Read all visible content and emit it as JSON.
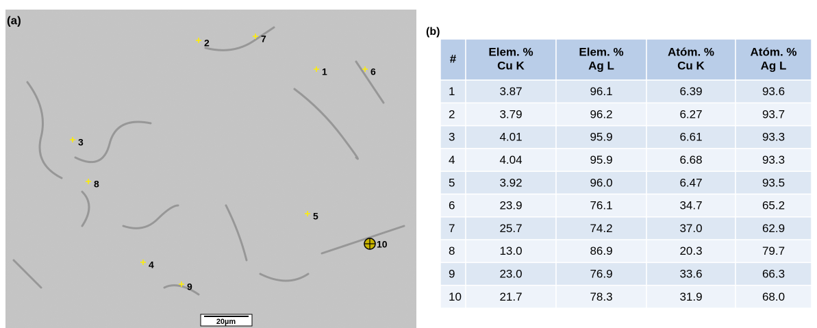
{
  "panel_a": {
    "label": "(a)",
    "points": [
      "1",
      "2",
      "3",
      "4",
      "5",
      "6",
      "7",
      "8",
      "9",
      "10"
    ],
    "scale_bar": "20µm"
  },
  "panel_b": {
    "label": "(b)",
    "table": {
      "header": [
        [
          "#"
        ],
        [
          "Elem. %",
          "Cu K"
        ],
        [
          "Elem. %",
          "Ag L"
        ],
        [
          "Atóm. %",
          "Cu K"
        ],
        [
          "Atóm. %",
          "Ag L"
        ]
      ],
      "rows": [
        [
          "1",
          "3.87",
          "96.1",
          "6.39",
          "93.6"
        ],
        [
          "2",
          "3.79",
          "96.2",
          "6.27",
          "93.7"
        ],
        [
          "3",
          "4.01",
          "95.9",
          "6.61",
          "93.3"
        ],
        [
          "4",
          "4.04",
          "95.9",
          "6.68",
          "93.3"
        ],
        [
          "5",
          "3.92",
          "96.0",
          "6.47",
          "93.5"
        ],
        [
          "6",
          "23.9",
          "76.1",
          "34.7",
          "65.2"
        ],
        [
          "7",
          "25.7",
          "74.2",
          "37.0",
          "62.9"
        ],
        [
          "8",
          "13.0",
          "86.9",
          "20.3",
          "79.7"
        ],
        [
          "9",
          "23.0",
          "76.9",
          "33.6",
          "66.3"
        ],
        [
          "10",
          "21.7",
          "78.3",
          "31.9",
          "68.0"
        ]
      ]
    }
  }
}
